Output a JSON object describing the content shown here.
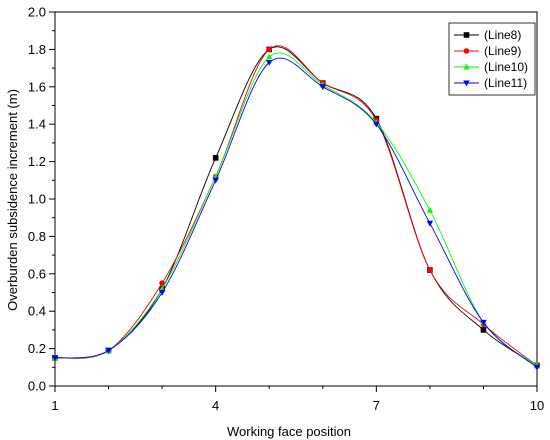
{
  "chart_data": {
    "type": "line",
    "title": "",
    "xlabel": "Working face position",
    "ylabel": "Overburden subsidence increment (m)",
    "xlim": [
      1,
      10
    ],
    "ylim": [
      0,
      2.0
    ],
    "x_ticks": [
      1,
      4,
      7,
      10
    ],
    "x_tick_labels": [
      "1",
      "4",
      "7",
      "10"
    ],
    "y_ticks": [
      0.0,
      0.2,
      0.4,
      0.6,
      0.8,
      1.0,
      1.2,
      1.4,
      1.6,
      1.8,
      2.0
    ],
    "y_tick_labels": [
      "0.0",
      "0.2",
      "0.4",
      "0.6",
      "0.8",
      "1.0",
      "1.2",
      "1.4",
      "1.6",
      "1.8",
      "2.0"
    ],
    "grid": false,
    "legend_position": "top-right",
    "x": [
      1,
      2,
      3,
      4,
      5,
      6,
      7,
      8,
      9,
      10
    ],
    "series": [
      {
        "name": "(Line8)",
        "color": "#000000",
        "marker": "square",
        "values": [
          0.15,
          0.19,
          0.52,
          1.22,
          1.8,
          1.62,
          1.43,
          0.62,
          0.3,
          0.11
        ]
      },
      {
        "name": "(Line9)",
        "color": "#ff0000",
        "marker": "circle",
        "values": [
          0.15,
          0.19,
          0.55,
          1.12,
          1.8,
          1.62,
          1.42,
          0.62,
          0.33,
          0.11
        ]
      },
      {
        "name": "(Line10)",
        "color": "#00ff00",
        "marker": "triangle-up",
        "values": [
          0.15,
          0.19,
          0.52,
          1.12,
          1.76,
          1.61,
          1.41,
          0.94,
          0.34,
          0.11
        ]
      },
      {
        "name": "(Line11)",
        "color": "#0000ff",
        "marker": "triangle-down",
        "values": [
          0.15,
          0.19,
          0.5,
          1.1,
          1.73,
          1.6,
          1.4,
          0.87,
          0.34,
          0.1
        ]
      }
    ]
  }
}
